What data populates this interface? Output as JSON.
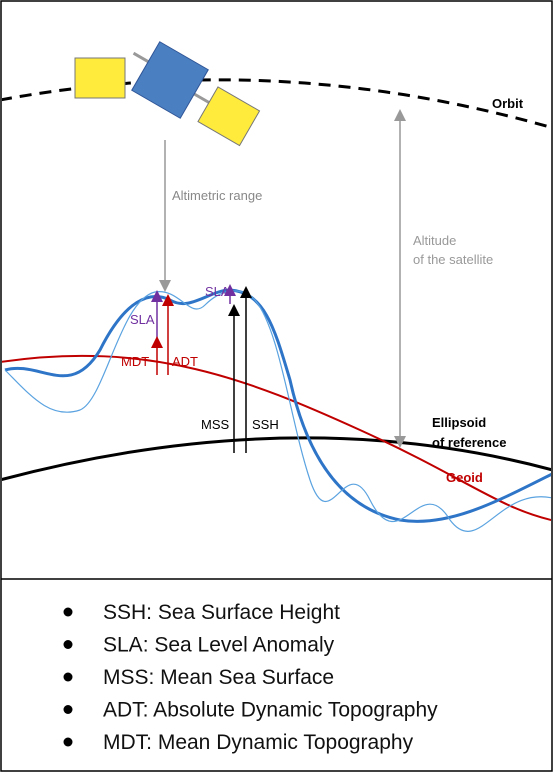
{
  "diagram": {
    "labels": {
      "orbit": "Orbit",
      "altimetric_range": "Altimetric range",
      "altitude": [
        "Altitude",
        "of the satellite"
      ],
      "sla": "SLA",
      "mdt": "MDT",
      "adt": "ADT",
      "mss": "MSS",
      "ssh": "SSH",
      "ellipsoid": [
        "Ellipsoid",
        "of reference"
      ],
      "geoid": "Geoid"
    },
    "legend": [
      "SSH: Sea Surface Height",
      "SLA: Sea Level Anomaly",
      "MSS: Mean Sea Surface",
      "ADT: Absolute Dynamic Topography",
      "MDT: Mean Dynamic Topography"
    ]
  }
}
